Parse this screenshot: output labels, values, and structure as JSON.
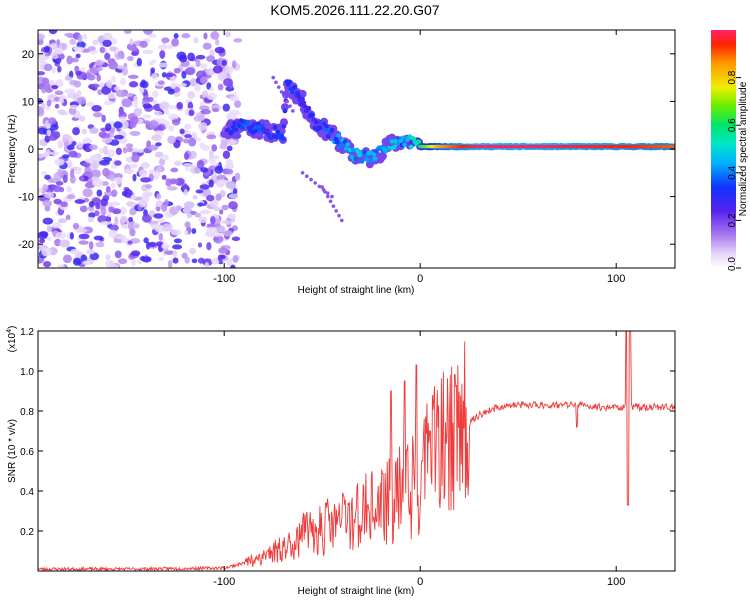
{
  "title": "KOM5.2026.111.22.20.G07",
  "chart_data": [
    {
      "type": "heatmap",
      "xlabel": "Height of straight line (km)",
      "ylabel": "Frequency (Hz)",
      "xlim": [
        -195,
        130
      ],
      "ylim": [
        -25,
        25
      ],
      "xticks": [
        -100,
        0,
        100
      ],
      "yticks": [
        -20,
        -10,
        0,
        10,
        20
      ],
      "description_series": [
        {
          "name": "noise",
          "x_range": [
            -195,
            -98
          ],
          "y_range": [
            -25,
            25
          ],
          "amplitude": [
            0.05,
            0.3
          ]
        },
        {
          "name": "signal-ridge",
          "points": [
            {
              "x": -100,
              "y": 4,
              "a": 0.2
            },
            {
              "x": -90,
              "y": 5,
              "a": 0.35
            },
            {
              "x": -80,
              "y": 4,
              "a": 0.3
            },
            {
              "x": -70,
              "y": 3,
              "a": 0.35
            },
            {
              "x": -68,
              "y": 14,
              "a": 0.3
            },
            {
              "x": -60,
              "y": 10,
              "a": 0.25
            },
            {
              "x": -55,
              "y": 6,
              "a": 0.3
            },
            {
              "x": -45,
              "y": 3,
              "a": 0.35
            },
            {
              "x": -35,
              "y": -1,
              "a": 0.45
            },
            {
              "x": -25,
              "y": -2,
              "a": 0.4
            },
            {
              "x": -15,
              "y": 1,
              "a": 0.45
            },
            {
              "x": -8,
              "y": 2,
              "a": 0.4
            },
            {
              "x": 0,
              "y": 0.5,
              "a": 0.6
            },
            {
              "x": 10,
              "y": 0.5,
              "a": 0.85
            },
            {
              "x": 30,
              "y": 0.5,
              "a": 1.0
            },
            {
              "x": 60,
              "y": 0.5,
              "a": 1.0
            },
            {
              "x": 100,
              "y": 0.5,
              "a": 0.95
            },
            {
              "x": 130,
              "y": 0.5,
              "a": 0.9
            }
          ]
        }
      ],
      "colorbar": {
        "label": "Normalized spectral amplitude",
        "range": [
          0,
          1
        ],
        "ticks": [
          "0.0",
          "0.2",
          "0.4",
          "0.6",
          "0.8"
        ],
        "tick_values": [
          0.0,
          0.2,
          0.4,
          0.6,
          0.8
        ]
      }
    },
    {
      "type": "line",
      "xlabel": "Height of straight line (km)",
      "ylabel": "SNR (10 * v/v)",
      "scale_label": "(x10",
      "scale_exponent": "4",
      "xlim": [
        -195,
        130
      ],
      "ylim": [
        0,
        1.2
      ],
      "xticks": [
        -100,
        0,
        100
      ],
      "yticks": [
        0.2,
        0.4,
        0.6,
        0.8,
        1.0,
        1.2
      ],
      "ytick_labels": [
        "0.2",
        "0.4",
        "0.6",
        "0.8",
        "1.0",
        "1.2"
      ],
      "series": [
        {
          "name": "SNR",
          "color": "#ef3b3b",
          "x": [
            -195,
            -150,
            -100,
            -90,
            -80,
            -70,
            -60,
            -50,
            -40,
            -30,
            -20,
            -15,
            -10,
            -5,
            0,
            10,
            20,
            30,
            40,
            50,
            60,
            70,
            80,
            90,
            100,
            105,
            110,
            120,
            130
          ],
          "y": [
            0.01,
            0.01,
            0.015,
            0.04,
            0.08,
            0.12,
            0.18,
            0.22,
            0.26,
            0.3,
            0.33,
            0.36,
            0.4,
            0.42,
            0.5,
            0.62,
            0.7,
            0.78,
            0.82,
            0.83,
            0.83,
            0.83,
            0.83,
            0.82,
            0.82,
            0.82,
            0.82,
            0.82,
            0.82
          ]
        },
        {
          "name": "SNR-spikes",
          "x": [
            -15,
            -8,
            -2,
            1,
            5,
            80,
            105,
            106,
            107
          ],
          "y": [
            0.9,
            0.95,
            1.03,
            0.55,
            0.7,
            0.72,
            1.2,
            0.33,
            1.2
          ]
        }
      ]
    }
  ]
}
